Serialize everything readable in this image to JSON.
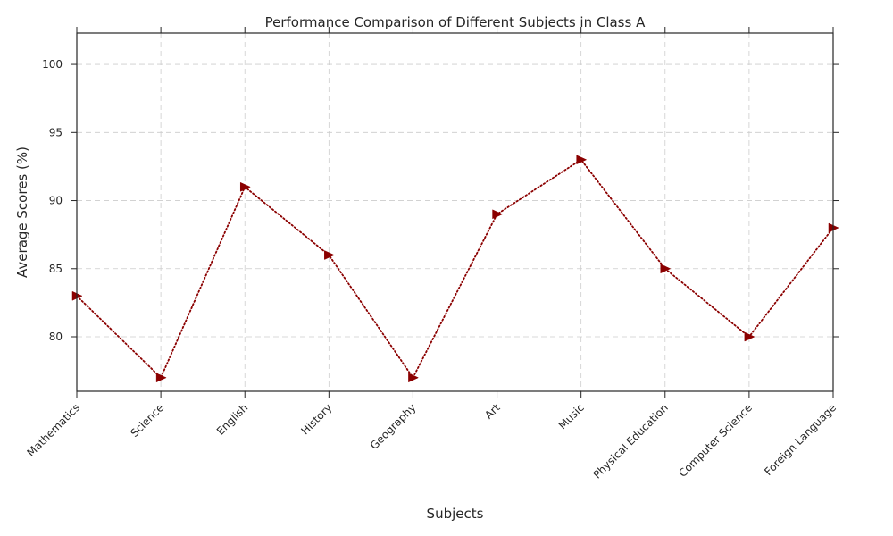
{
  "chart_data": {
    "type": "line",
    "title": "Performance Comparison of Different Subjects in Class A",
    "xlabel": "Subjects",
    "ylabel": "Average Scores (%)",
    "categories": [
      "Mathematics",
      "Science",
      "English",
      "History",
      "Geography",
      "Art",
      "Music",
      "Physical Education",
      "Computer Science",
      "Foreign Language"
    ],
    "series": [
      {
        "values": [
          83,
          77,
          91,
          86,
          77,
          89,
          93,
          85,
          80,
          88
        ]
      }
    ],
    "ylim": [
      76,
      102.3
    ],
    "yticks": [
      80,
      85,
      90,
      95,
      100
    ],
    "grid": true,
    "line_style": "dotted",
    "marker": "right-triangle",
    "series_color": "#8b0000"
  }
}
